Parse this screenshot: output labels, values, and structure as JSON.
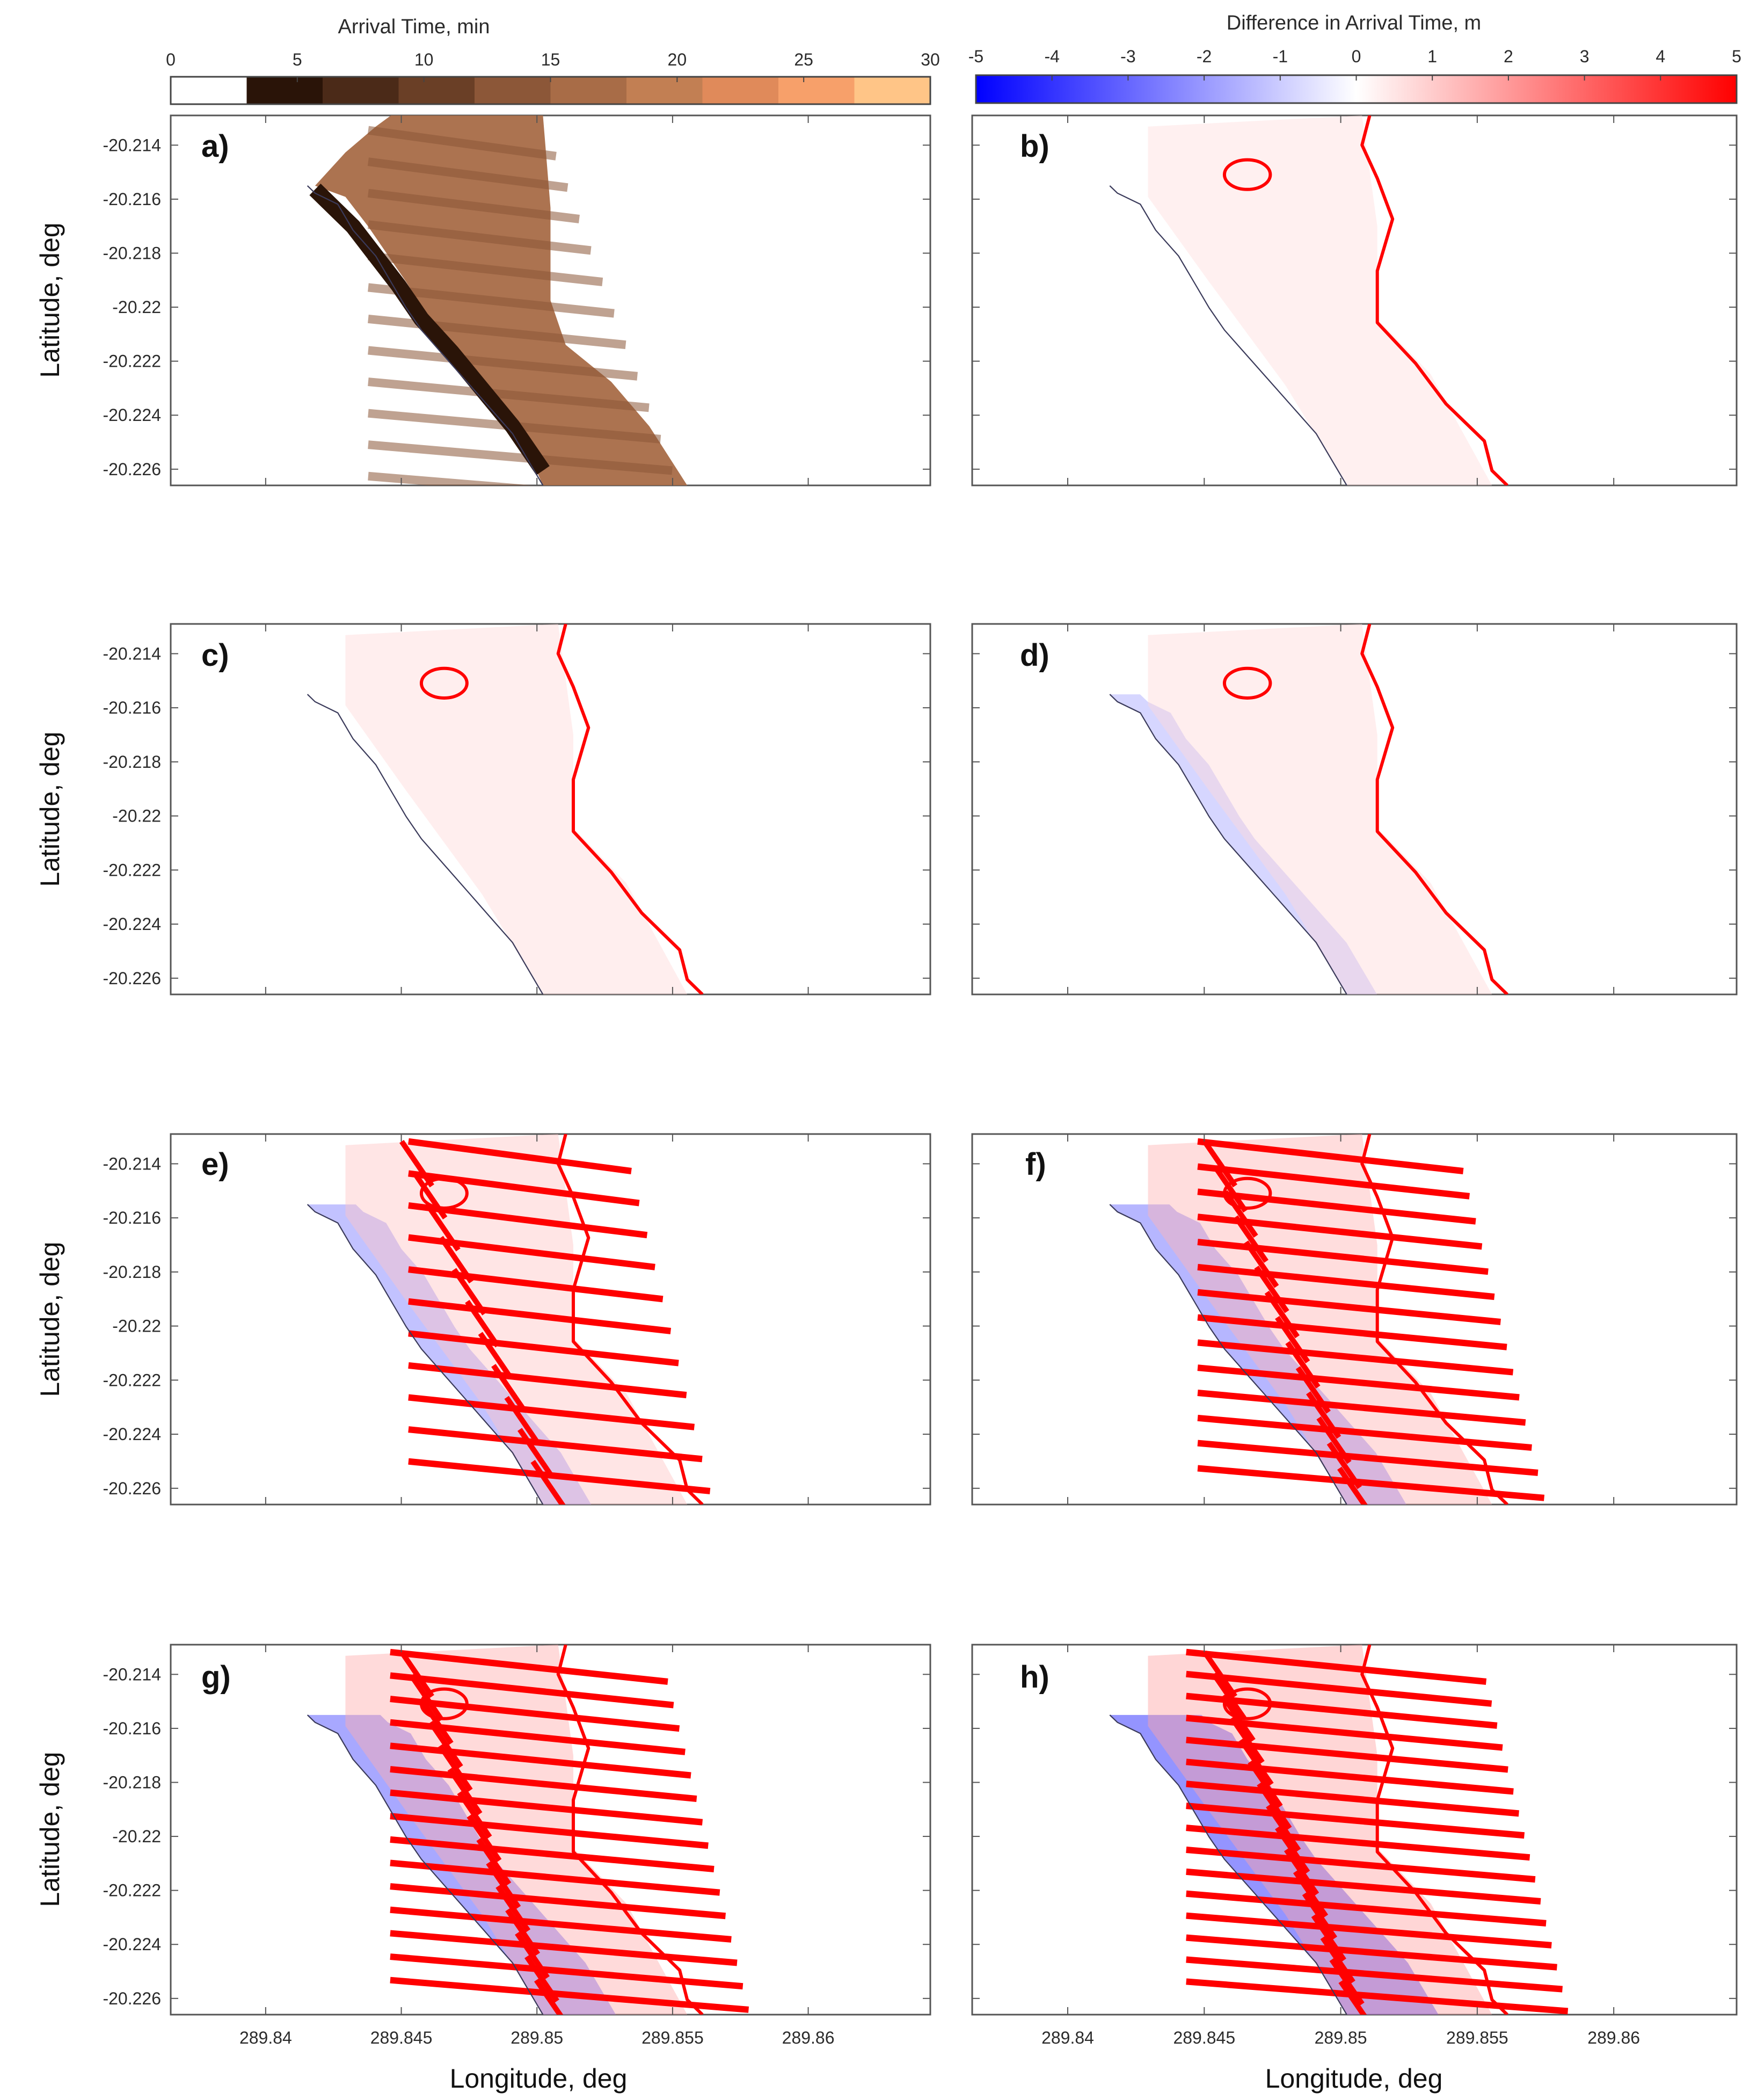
{
  "figure": {
    "colorbar_left": {
      "title": "Arrival Time, min",
      "ticks": [
        "0",
        "5",
        "10",
        "15",
        "20",
        "25",
        "30"
      ],
      "range": [
        0,
        30
      ],
      "bins": [
        {
          "from": 0,
          "to": 3,
          "color": "#ffffff"
        },
        {
          "from": 3,
          "to": 6,
          "color": "#2a1408"
        },
        {
          "from": 6,
          "to": 9,
          "color": "#4b2a18"
        },
        {
          "from": 9,
          "to": 12,
          "color": "#6a3f26"
        },
        {
          "from": 12,
          "to": 15,
          "color": "#8c5738"
        },
        {
          "from": 15,
          "to": 18,
          "color": "#a86c47"
        },
        {
          "from": 18,
          "to": 21,
          "color": "#c27f53"
        },
        {
          "from": 21,
          "to": 24,
          "color": "#e08a5a"
        },
        {
          "from": 24,
          "to": 27,
          "color": "#f7a06a"
        },
        {
          "from": 27,
          "to": 30,
          "color": "#ffc587"
        }
      ]
    },
    "colorbar_right": {
      "title": "Difference in Arrival Time, m",
      "ticks": [
        "-5",
        "-4",
        "-3",
        "-2",
        "-1",
        "0",
        "1",
        "2",
        "3",
        "4",
        "5"
      ],
      "range": [
        -5,
        5
      ],
      "neg_color": "#0000ff",
      "pos_color": "#ff0000",
      "mid_color": "#ffffff"
    },
    "x_ticks": [
      "289.84",
      "289.845",
      "289.85",
      "289.855",
      "289.86"
    ],
    "x_tick_values": [
      289.84,
      289.845,
      289.85,
      289.855,
      289.86
    ],
    "y_ticks": [
      "-20.214",
      "-20.216",
      "-20.218",
      "-20.22",
      "-20.222",
      "-20.224",
      "-20.226"
    ],
    "y_tick_values": [
      -20.214,
      -20.216,
      -20.218,
      -20.22,
      -20.222,
      -20.224,
      -20.226
    ],
    "xlim": [
      289.8365,
      289.8645
    ],
    "ylim": [
      -20.2266,
      -20.2129
    ],
    "xlabel": "Longitude, deg",
    "ylabel": "Latitude, deg",
    "panel_labels": [
      "a)",
      "b)",
      "c)",
      "d)",
      "e)",
      "f)",
      "g)",
      "h)"
    ]
  },
  "chart_data": [
    {
      "type": "heatmap",
      "panel": "a)",
      "quantity": "Arrival Time, min",
      "value_range": [
        0,
        30
      ],
      "clim": [
        0,
        30
      ],
      "dominant_value": 15,
      "coastline": true
    },
    {
      "type": "heatmap",
      "panel": "b)",
      "quantity": "Difference in Arrival Time, m",
      "clim": [
        -5,
        5
      ],
      "red_extent": 0.05,
      "blue_extent": 0.0
    },
    {
      "type": "heatmap",
      "panel": "c)",
      "quantity": "Difference in Arrival Time, m",
      "clim": [
        -5,
        5
      ],
      "red_extent": 0.1,
      "blue_extent": 0.0
    },
    {
      "type": "heatmap",
      "panel": "d)",
      "quantity": "Difference in Arrival Time, m",
      "clim": [
        -5,
        5
      ],
      "red_extent": 0.12,
      "blue_extent": 0.08
    },
    {
      "type": "heatmap",
      "panel": "e)",
      "quantity": "Difference in Arrival Time, m",
      "clim": [
        -5,
        5
      ],
      "red_extent": 0.45,
      "blue_extent": 0.28
    },
    {
      "type": "heatmap",
      "panel": "f)",
      "quantity": "Difference in Arrival Time, m",
      "clim": [
        -5,
        5
      ],
      "red_extent": 0.75,
      "blue_extent": 0.4
    },
    {
      "type": "heatmap",
      "panel": "g)",
      "quantity": "Difference in Arrival Time, m",
      "clim": [
        -5,
        5
      ],
      "red_extent": 0.85,
      "blue_extent": 0.55
    },
    {
      "type": "heatmap",
      "panel": "h)",
      "quantity": "Difference in Arrival Time, m",
      "clim": [
        -5,
        5
      ],
      "red_extent": 1.0,
      "blue_extent": 0.75
    }
  ]
}
